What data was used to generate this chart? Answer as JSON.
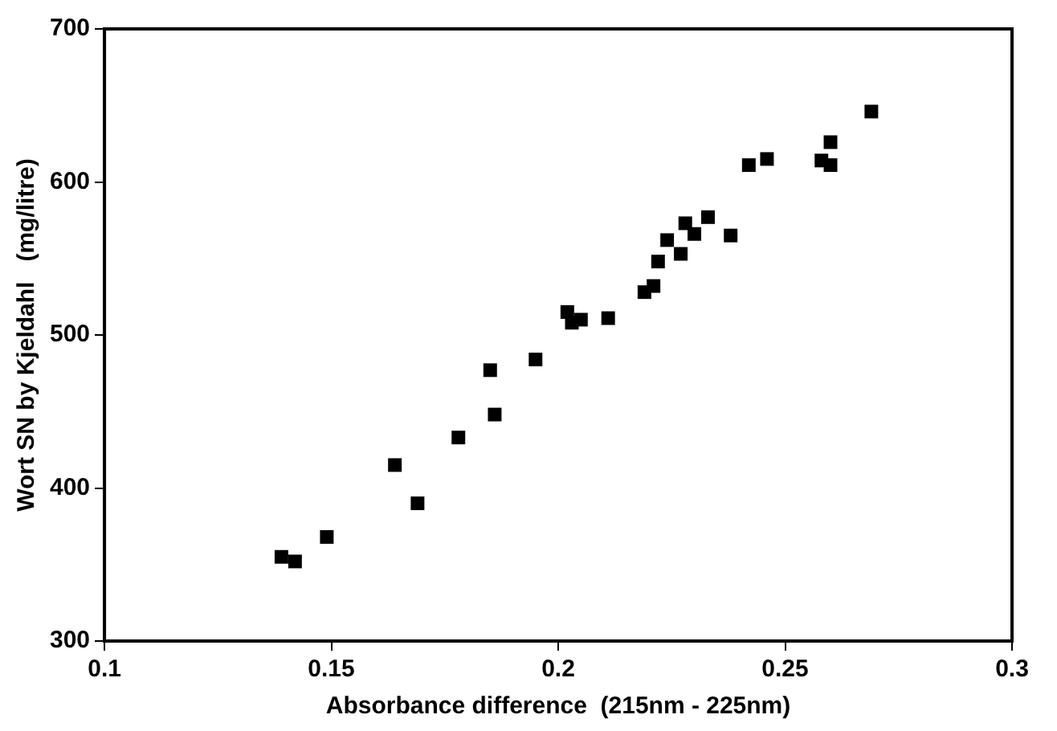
{
  "chart_data": {
    "type": "scatter",
    "xlabel": "Absorbance difference  (215nm - 225nm)",
    "ylabel": "Wort SN by Kjeldahl   (mg/litre)",
    "xlim": [
      0.1,
      0.3
    ],
    "xticks": [
      0.1,
      0.15,
      0.2,
      0.25,
      0.3
    ],
    "ylim": [
      300,
      700
    ],
    "yticks": [
      300,
      400,
      500,
      600,
      700
    ],
    "grid": false,
    "legend": false,
    "marker": "square",
    "series": [
      {
        "color": "#000000",
        "x": [
          0.139,
          0.142,
          0.149,
          0.164,
          0.169,
          0.178,
          0.185,
          0.186,
          0.195,
          0.202,
          0.203,
          0.205,
          0.211,
          0.219,
          0.221,
          0.222,
          0.224,
          0.227,
          0.228,
          0.23,
          0.233,
          0.238,
          0.242,
          0.246,
          0.258,
          0.26,
          0.26,
          0.269
        ],
        "values": [
          355,
          352,
          368,
          415,
          390,
          433,
          477,
          448,
          484,
          515,
          508,
          510,
          511,
          528,
          532,
          548,
          562,
          553,
          573,
          566,
          577,
          565,
          611,
          615,
          614,
          626,
          611,
          646
        ]
      }
    ]
  }
}
